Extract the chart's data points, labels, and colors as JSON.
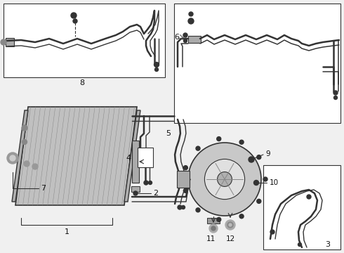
{
  "bg_color": "#f0f0f0",
  "line_color": "#555555",
  "dark_color": "#333333",
  "label_color": "#111111",
  "box_fill": "#e8e8e8",
  "condenser_fill": "#c8c8c8",
  "white": "#ffffff"
}
